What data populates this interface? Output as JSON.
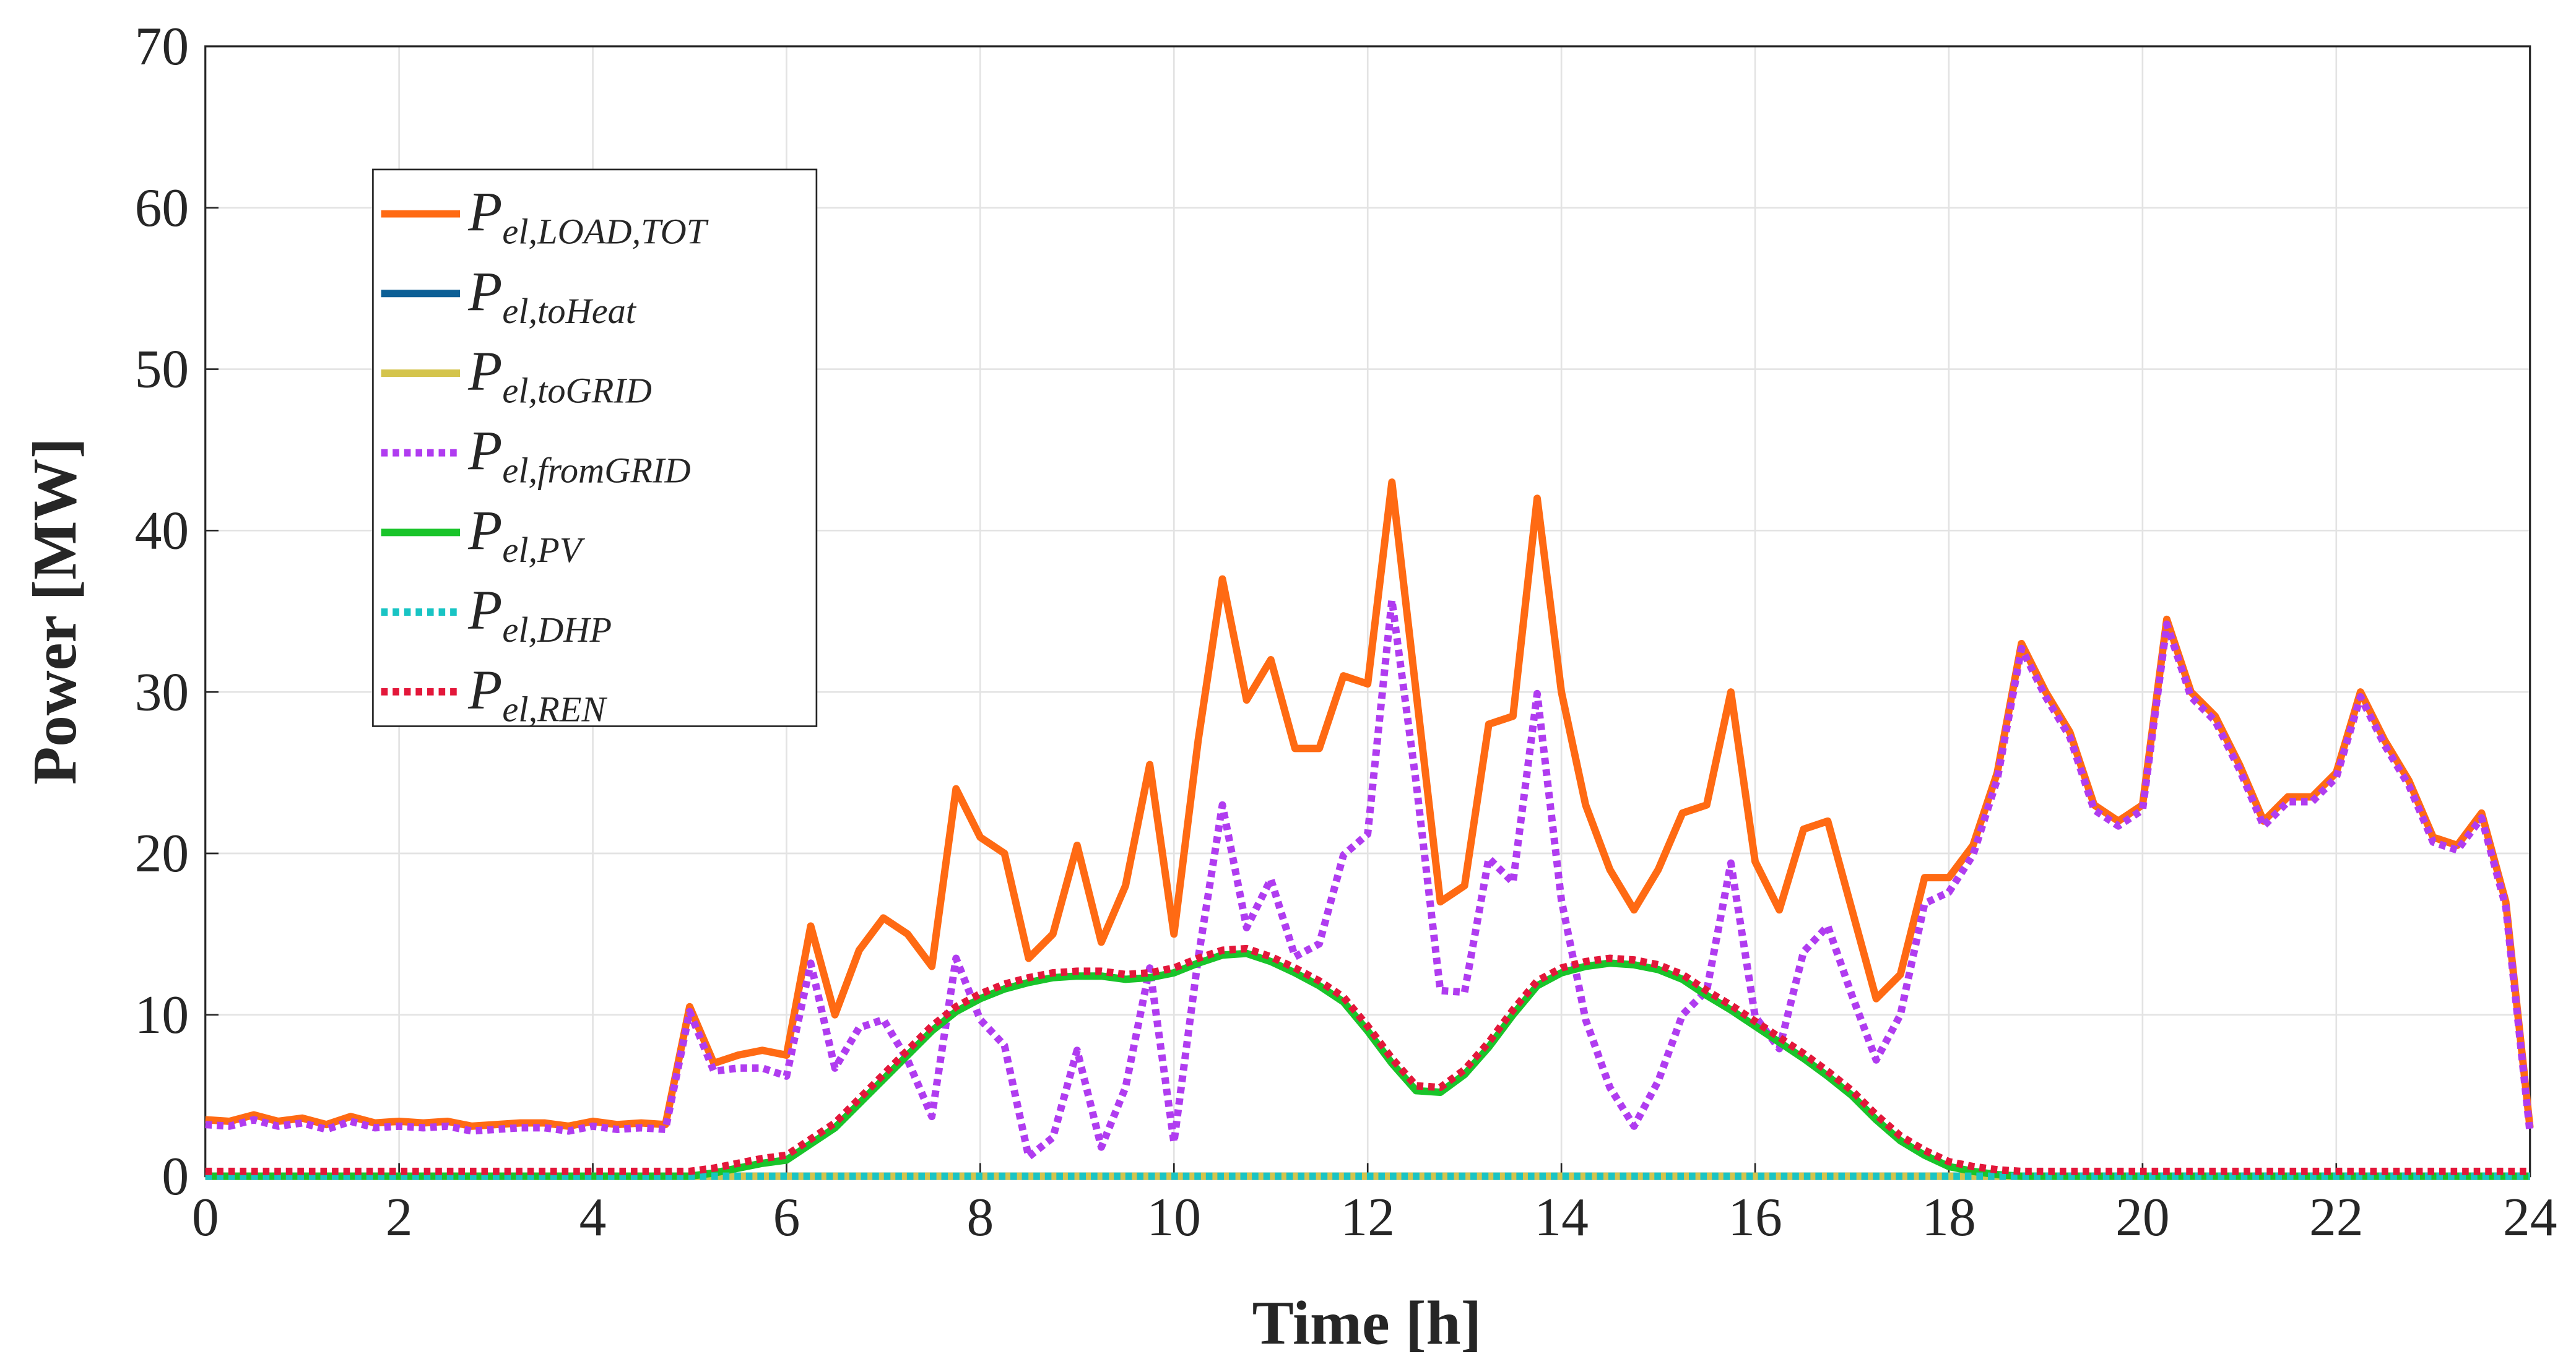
{
  "chart_data": {
    "type": "line",
    "xlabel": "Time [h]",
    "ylabel": "Power [MW]",
    "xlim": [
      0,
      24
    ],
    "ylim": [
      0,
      70
    ],
    "xticks": [
      0,
      2,
      4,
      6,
      8,
      10,
      12,
      14,
      16,
      18,
      20,
      22,
      24
    ],
    "yticks": [
      0,
      10,
      20,
      30,
      40,
      50,
      60,
      70
    ],
    "grid": true,
    "legend": "upper left",
    "x": [
      0,
      0.25,
      0.5,
      0.75,
      1,
      1.25,
      1.5,
      1.75,
      2,
      2.25,
      2.5,
      2.75,
      3,
      3.25,
      3.5,
      3.75,
      4,
      4.25,
      4.5,
      4.75,
      5,
      5.25,
      5.5,
      5.75,
      6,
      6.25,
      6.5,
      6.75,
      7,
      7.25,
      7.5,
      7.75,
      8,
      8.25,
      8.5,
      8.75,
      9,
      9.25,
      9.5,
      9.75,
      10,
      10.25,
      10.5,
      10.75,
      11,
      11.25,
      11.5,
      11.75,
      12,
      12.25,
      12.5,
      12.75,
      13,
      13.25,
      13.5,
      13.75,
      14,
      14.25,
      14.5,
      14.75,
      15,
      15.25,
      15.5,
      15.75,
      16,
      16.25,
      16.5,
      16.75,
      17,
      17.25,
      17.5,
      17.75,
      18,
      18.25,
      18.5,
      18.75,
      19,
      19.25,
      19.5,
      19.75,
      20,
      20.25,
      20.5,
      20.75,
      21,
      21.25,
      21.5,
      21.75,
      22,
      22.25,
      22.5,
      22.75,
      23,
      23.25,
      23.5,
      23.75,
      24
    ],
    "series": [
      {
        "name": "Pel,LOAD,TOT",
        "color": "#ff6a13",
        "style": "solid",
        "values": [
          3.5,
          3.4,
          3.8,
          3.4,
          3.6,
          3.2,
          3.7,
          3.3,
          3.4,
          3.3,
          3.4,
          3.1,
          3.2,
          3.3,
          3.3,
          3.1,
          3.4,
          3.2,
          3.3,
          3.2,
          10.5,
          7,
          7.5,
          7.8,
          7.5,
          15.5,
          10,
          14,
          16,
          15,
          13,
          24,
          21,
          20,
          13.5,
          15,
          20.5,
          14.5,
          18,
          25.5,
          15,
          27,
          37,
          29.5,
          32,
          26.5,
          26.5,
          31,
          30.5,
          43,
          30,
          17,
          18,
          28,
          28.5,
          42,
          30,
          23,
          19,
          16.5,
          19,
          22.5,
          23,
          30,
          19.5,
          16.5,
          21.5,
          22,
          16.5,
          11,
          12.5,
          18.5,
          18.5,
          20.5,
          25,
          33,
          30,
          27.5,
          23,
          22,
          23,
          34.5,
          30,
          28.5,
          25.5,
          22,
          23.5,
          23.5,
          25,
          30,
          27,
          24.5,
          21,
          20.5,
          22.5,
          17,
          3
        ]
      },
      {
        "name": "Pel,toHeat",
        "color": "#0c5f96",
        "style": "solid",
        "values": [
          0,
          0,
          0,
          0,
          0,
          0,
          0,
          0,
          0,
          0,
          0,
          0,
          0,
          0,
          0,
          0,
          0,
          0,
          0,
          0,
          0,
          0,
          0,
          0,
          0,
          0,
          0,
          0,
          0,
          0,
          0,
          0,
          0,
          0,
          0,
          0,
          0,
          0,
          0,
          0,
          0,
          0,
          0,
          0,
          0,
          0,
          0,
          0,
          0,
          0,
          0,
          0,
          0,
          0,
          0,
          0,
          0,
          0,
          0,
          0,
          0,
          0,
          0,
          0,
          0,
          0,
          0,
          0,
          0,
          0,
          0,
          0,
          0,
          0,
          0,
          0,
          0,
          0,
          0,
          0,
          0,
          0,
          0,
          0,
          0,
          0,
          0,
          0,
          0,
          0,
          0,
          0,
          0,
          0,
          0,
          0,
          0
        ]
      },
      {
        "name": "Pel,toGRID",
        "color": "#d4c44c",
        "style": "solid",
        "values": [
          0,
          0,
          0,
          0,
          0,
          0,
          0,
          0,
          0,
          0,
          0,
          0,
          0,
          0,
          0,
          0,
          0,
          0,
          0,
          0,
          0,
          0,
          0,
          0,
          0,
          0,
          0,
          0,
          0,
          0,
          0,
          0,
          0,
          0,
          0,
          0,
          0,
          0,
          0,
          0,
          0,
          0,
          0,
          0,
          0,
          0,
          0,
          0,
          0,
          0,
          0,
          0,
          0,
          0,
          0,
          0,
          0,
          0,
          0,
          0,
          0,
          0,
          0,
          0,
          0,
          0,
          0,
          0,
          0,
          0,
          0,
          0,
          0,
          0,
          0,
          0,
          0,
          0,
          0,
          0,
          0,
          0,
          0,
          0,
          0,
          0,
          0,
          0,
          0,
          0,
          0,
          0,
          0,
          0,
          0,
          0,
          0
        ]
      },
      {
        "name": "Pel,fromGRID",
        "color": "#b03cf0",
        "style": "dotted",
        "values": [
          3.2,
          3.1,
          3.5,
          3.1,
          3.3,
          2.9,
          3.4,
          3.0,
          3.1,
          3.0,
          3.1,
          2.8,
          2.9,
          3.0,
          3.0,
          2.8,
          3.1,
          2.9,
          3.0,
          2.9,
          10.2,
          6.5,
          6.7,
          6.7,
          6.2,
          13.2,
          6.7,
          9.2,
          9.7,
          7.2,
          3.7,
          13.5,
          9.7,
          8.1,
          1.2,
          2.4,
          7.8,
          1.8,
          5.5,
          12.9,
          2.1,
          13.5,
          23,
          15.4,
          18.4,
          13.6,
          14.4,
          19.9,
          21.2,
          35.7,
          24.4,
          11.5,
          11.4,
          19.7,
          18.2,
          29.9,
          17.1,
          9.7,
          5.5,
          3.1,
          5.9,
          10,
          11.5,
          19.4,
          9.9,
          7.9,
          13.9,
          15.5,
          11.2,
          7.2,
          10,
          16.9,
          17.6,
          19.9,
          24.6,
          32.7,
          29.7,
          27.2,
          22.7,
          21.7,
          22.7,
          34.2,
          29.7,
          28.2,
          25.2,
          21.7,
          23.2,
          23.2,
          24.7,
          29.7,
          26.7,
          24.2,
          20.7,
          20.2,
          22.2,
          16.7,
          2.7
        ]
      },
      {
        "name": "Pel,PV",
        "color": "#19c42a",
        "style": "solid",
        "values": [
          0,
          0,
          0,
          0,
          0,
          0,
          0,
          0,
          0,
          0,
          0,
          0,
          0,
          0,
          0,
          0,
          0,
          0,
          0,
          0,
          0,
          0.2,
          0.5,
          0.8,
          1,
          2,
          3,
          4.5,
          6,
          7.5,
          9,
          10.2,
          11,
          11.6,
          12,
          12.3,
          12.4,
          12.4,
          12.2,
          12.3,
          12.6,
          13.2,
          13.7,
          13.8,
          13.3,
          12.6,
          11.8,
          10.8,
          9,
          7,
          5.3,
          5.2,
          6.3,
          8,
          10,
          11.8,
          12.6,
          13,
          13.2,
          13.1,
          12.8,
          12.2,
          11.2,
          10.3,
          9.3,
          8.3,
          7.3,
          6.2,
          5,
          3.5,
          2.2,
          1.3,
          0.6,
          0.3,
          0.1,
          0,
          0,
          0,
          0,
          0,
          0,
          0,
          0,
          0,
          0,
          0,
          0,
          0,
          0,
          0,
          0,
          0,
          0,
          0,
          0,
          0,
          0
        ]
      },
      {
        "name": "Pel,DHP",
        "color": "#19c4c4",
        "style": "dotted",
        "values": [
          0,
          0,
          0,
          0,
          0,
          0,
          0,
          0,
          0,
          0,
          0,
          0,
          0,
          0,
          0,
          0,
          0,
          0,
          0,
          0,
          0,
          0,
          0,
          0,
          0,
          0,
          0,
          0,
          0,
          0,
          0,
          0,
          0,
          0,
          0,
          0,
          0,
          0,
          0,
          0,
          0,
          0,
          0,
          0,
          0,
          0,
          0,
          0,
          0,
          0,
          0,
          0,
          0,
          0,
          0,
          0,
          0,
          0,
          0,
          0,
          0,
          0,
          0,
          0,
          0,
          0,
          0,
          0,
          0,
          0,
          0,
          0,
          0,
          0,
          0,
          0,
          0,
          0,
          0,
          0,
          0,
          0,
          0,
          0,
          0,
          0,
          0,
          0,
          0,
          0,
          0,
          0,
          0,
          0,
          0,
          0,
          0
        ]
      },
      {
        "name": "Pel,REN",
        "color": "#e3173a",
        "style": "dotted",
        "values": [
          0.3,
          0.3,
          0.3,
          0.3,
          0.3,
          0.3,
          0.3,
          0.3,
          0.3,
          0.3,
          0.3,
          0.3,
          0.3,
          0.3,
          0.3,
          0.3,
          0.3,
          0.3,
          0.3,
          0.3,
          0.3,
          0.5,
          0.8,
          1.1,
          1.3,
          2.3,
          3.3,
          4.8,
          6.3,
          7.8,
          9.3,
          10.5,
          11.3,
          11.9,
          12.3,
          12.6,
          12.7,
          12.7,
          12.5,
          12.6,
          12.9,
          13.5,
          14,
          14.1,
          13.6,
          12.9,
          12.1,
          11.1,
          9.3,
          7.3,
          5.6,
          5.5,
          6.6,
          8.3,
          10.3,
          12.1,
          12.9,
          13.3,
          13.5,
          13.4,
          13.1,
          12.5,
          11.5,
          10.6,
          9.6,
          8.6,
          7.6,
          6.5,
          5.3,
          3.8,
          2.5,
          1.6,
          0.9,
          0.6,
          0.4,
          0.3,
          0.3,
          0.3,
          0.3,
          0.3,
          0.3,
          0.3,
          0.3,
          0.3,
          0.3,
          0.3,
          0.3,
          0.3,
          0.3,
          0.3,
          0.3,
          0.3,
          0.3,
          0.3,
          0.3,
          0.3,
          0.3
        ]
      }
    ]
  }
}
